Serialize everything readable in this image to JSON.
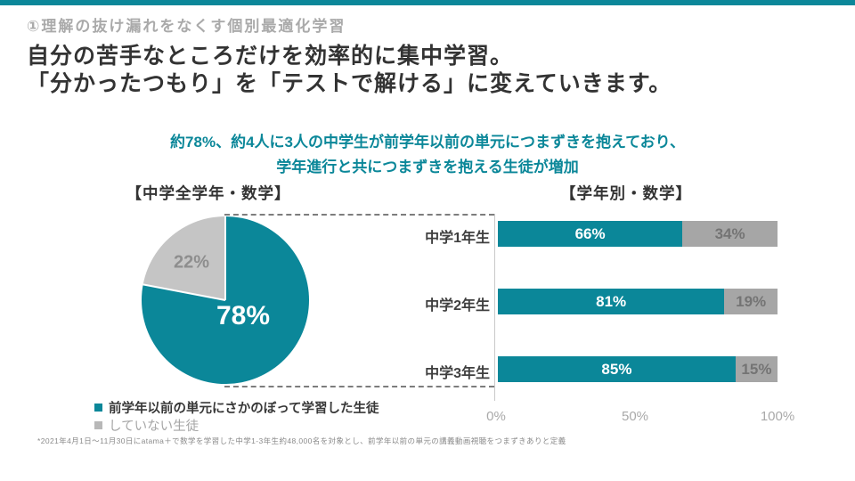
{
  "slide": {
    "accent_color": "#0b8799",
    "header": "①理解の抜け漏れをなくす個別最適化学習",
    "title_lines": [
      "自分の苦手なところだけを効率的に集中学習。",
      "「分かったつもり」を「テストで解ける」に変えていきます。"
    ],
    "subtitle_lines": [
      "約78%、約4人に3人の中学生が前学年以前の単元につまずきを抱えており、",
      "学年進行と共につまずきを抱える生徒が増加"
    ],
    "footnote": "*2021年4月1日～11月30日にatama＋で数学を学習した中学1-3年生約48,000名を対象とし、前学年以前の単元の講義動画視聴をつまずきありと定義"
  },
  "chart_data": [
    {
      "type": "pie",
      "title": "【中学全学年・数学】",
      "slices": [
        {
          "label": "前学年以前の単元にさかのぼって学習した生徒",
          "value": 78,
          "display": "78%",
          "color": "#0b8799"
        },
        {
          "label": "していない生徒",
          "value": 22,
          "display": "22%",
          "color": "#c5c5c5"
        }
      ]
    },
    {
      "type": "bar",
      "title": "【学年別・数学】",
      "orientation": "horizontal",
      "stacked": true,
      "xlim": [
        0,
        100
      ],
      "x_ticks": [
        "0%",
        "50%",
        "100%"
      ],
      "series_colors": {
        "learned": "#0b8799",
        "not_learned": "#a6a6a6"
      },
      "series_names": [
        "前学年以前の単元にさかのぼって学習した生徒",
        "していない生徒"
      ],
      "rows": [
        {
          "category": "中学1年生",
          "learned_pct": 66,
          "learned_label": "66%",
          "not_learned_pct": 34,
          "not_learned_label": "34%"
        },
        {
          "category": "中学2年生",
          "learned_pct": 81,
          "learned_label": "81%",
          "not_learned_pct": 19,
          "not_learned_label": "19%"
        },
        {
          "category": "中学3年生",
          "learned_pct": 85,
          "learned_label": "85%",
          "not_learned_pct": 15,
          "not_learned_label": "15%"
        }
      ]
    }
  ],
  "legend": {
    "items": [
      {
        "label": "前学年以前の単元にさかのぼって学習した生徒",
        "color": "#0b8799"
      },
      {
        "label": "していない生徒",
        "color": "#b8b8b8"
      }
    ]
  }
}
